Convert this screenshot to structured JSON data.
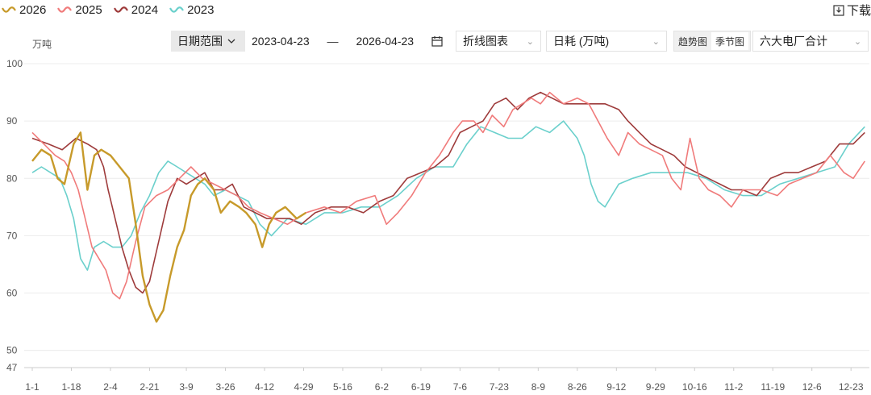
{
  "legend": [
    {
      "label": "2026",
      "color": "#c79a2a"
    },
    {
      "label": "2025",
      "color": "#f07b7b"
    },
    {
      "label": "2024",
      "color": "#9e3b3b"
    },
    {
      "label": "2023",
      "color": "#6bd0cc"
    }
  ],
  "toolbar": {
    "download_label": "下载",
    "date_range_label": "日期范围",
    "date_start": "2023-04-23",
    "date_separator": "—",
    "date_end": "2026-04-23",
    "chart_type": "折线图表",
    "metric": "日耗 (万吨)",
    "view_trend": "趋势图",
    "view_season": "季节图",
    "view_selected": "季节图",
    "plant_group": "六大电厂合计"
  },
  "chart_data": {
    "type": "line",
    "ylabel": "万吨",
    "ylim": [
      47,
      100
    ],
    "yticks": [
      47,
      50,
      60,
      70,
      80,
      90,
      100
    ],
    "grid": true,
    "legend_position": "top-left",
    "x_tick_labels": [
      "1-1",
      "1-18",
      "2-4",
      "2-21",
      "3-9",
      "3-26",
      "4-12",
      "4-29",
      "5-16",
      "6-2",
      "6-19",
      "7-6",
      "7-23",
      "8-9",
      "8-26",
      "9-12",
      "9-29",
      "10-16",
      "11-2",
      "11-19",
      "12-6",
      "12-23"
    ],
    "x_tick_days": [
      1,
      18,
      35,
      52,
      68,
      85,
      102,
      119,
      136,
      153,
      170,
      187,
      204,
      221,
      238,
      255,
      272,
      289,
      306,
      323,
      340,
      357
    ],
    "series": [
      {
        "name": "2026",
        "color": "#c79a2a",
        "days": [
          1,
          5,
          9,
          12,
          15,
          19,
          22,
          25,
          28,
          31,
          35,
          39,
          43,
          46,
          49,
          52,
          55,
          58,
          61,
          64,
          67,
          70,
          73,
          76,
          80,
          83,
          87,
          91,
          94,
          98,
          101,
          104,
          107,
          111,
          116,
          120
        ],
        "values": [
          83,
          85,
          84,
          80,
          79,
          86,
          88,
          78,
          84,
          85,
          84,
          82,
          80,
          72,
          63,
          58,
          55,
          57,
          63,
          68,
          71,
          77,
          79,
          80,
          78,
          74,
          76,
          75,
          74,
          72,
          68,
          72,
          74,
          75,
          73,
          74
        ]
      },
      {
        "name": "2025",
        "color": "#f07b7b",
        "days": [
          1,
          6,
          11,
          15,
          18,
          21,
          24,
          27,
          30,
          33,
          36,
          39,
          42,
          46,
          50,
          55,
          60,
          65,
          70,
          75,
          80,
          85,
          90,
          95,
          100,
          106,
          112,
          120,
          128,
          135,
          142,
          150,
          155,
          160,
          166,
          172,
          178,
          184,
          188,
          193,
          197,
          201,
          206,
          210,
          214,
          218,
          222,
          226,
          232,
          238,
          243,
          247,
          251,
          256,
          260,
          265,
          270,
          275,
          279,
          283,
          287,
          291,
          295,
          300,
          305,
          310,
          318,
          325,
          330,
          336,
          342,
          348,
          354,
          358,
          363
        ],
        "values": [
          88,
          86,
          84,
          83,
          81,
          78,
          73,
          68,
          66,
          64,
          60,
          59,
          62,
          69,
          75,
          77,
          78,
          80,
          82,
          80,
          79,
          78,
          77,
          75,
          74,
          73,
          72,
          74,
          75,
          74,
          76,
          77,
          72,
          74,
          77,
          81,
          84,
          88,
          90,
          90,
          88,
          91,
          89,
          92,
          93,
          94,
          93,
          95,
          93,
          94,
          93,
          90,
          87,
          84,
          88,
          86,
          85,
          84,
          80,
          78,
          87,
          80,
          78,
          77,
          75,
          78,
          78,
          77,
          79,
          80,
          81,
          84,
          81,
          80,
          83
        ]
      },
      {
        "name": "2024",
        "color": "#9e3b3b",
        "days": [
          1,
          8,
          14,
          20,
          25,
          29,
          32,
          34,
          37,
          40,
          43,
          46,
          49,
          52,
          56,
          60,
          64,
          68,
          72,
          76,
          80,
          84,
          88,
          93,
          98,
          103,
          108,
          113,
          118,
          124,
          131,
          138,
          145,
          152,
          158,
          164,
          170,
          176,
          182,
          187,
          192,
          197,
          202,
          207,
          212,
          217,
          222,
          227,
          232,
          238,
          244,
          250,
          256,
          260,
          265,
          270,
          275,
          280,
          285,
          290,
          295,
          300,
          305,
          310,
          316,
          322,
          328,
          334,
          340,
          346,
          352,
          358,
          363
        ],
        "values": [
          87,
          86,
          85,
          87,
          86,
          85,
          82,
          78,
          73,
          68,
          64,
          61,
          60,
          62,
          69,
          76,
          80,
          79,
          80,
          81,
          78,
          78,
          79,
          75,
          74,
          73,
          73,
          73,
          72,
          74,
          75,
          75,
          74,
          76,
          77,
          80,
          81,
          82,
          84,
          88,
          89,
          90,
          93,
          94,
          92,
          94,
          95,
          94,
          93,
          93,
          93,
          93,
          92,
          90,
          88,
          86,
          85,
          84,
          82,
          81,
          80,
          79,
          78,
          78,
          77,
          80,
          81,
          81,
          82,
          83,
          86,
          86,
          88
        ]
      },
      {
        "name": "2023",
        "color": "#6bd0cc",
        "days": [
          1,
          5,
          9,
          13,
          16,
          19,
          22,
          25,
          28,
          32,
          36,
          40,
          44,
          48,
          52,
          56,
          60,
          64,
          68,
          72,
          76,
          80,
          85,
          90,
          95,
          100,
          105,
          112,
          120,
          128,
          136,
          144,
          152,
          160,
          168,
          176,
          184,
          190,
          196,
          202,
          208,
          214,
          220,
          226,
          232,
          238,
          241,
          244,
          247,
          250,
          256,
          262,
          270,
          278,
          286,
          294,
          302,
          310,
          318,
          326,
          334,
          342,
          350,
          356,
          363
        ],
        "values": [
          81,
          82,
          81,
          80,
          77,
          73,
          66,
          64,
          68,
          69,
          68,
          68,
          70,
          74,
          77,
          81,
          83,
          82,
          81,
          80,
          79,
          77,
          78,
          77,
          76,
          72,
          70,
          73,
          72,
          74,
          74,
          75,
          75,
          77,
          80,
          82,
          82,
          86,
          89,
          88,
          87,
          87,
          89,
          88,
          90,
          87,
          84,
          79,
          76,
          75,
          79,
          80,
          81,
          81,
          81,
          80,
          78,
          77,
          77,
          79,
          80,
          81,
          82,
          86,
          89
        ]
      }
    ]
  }
}
